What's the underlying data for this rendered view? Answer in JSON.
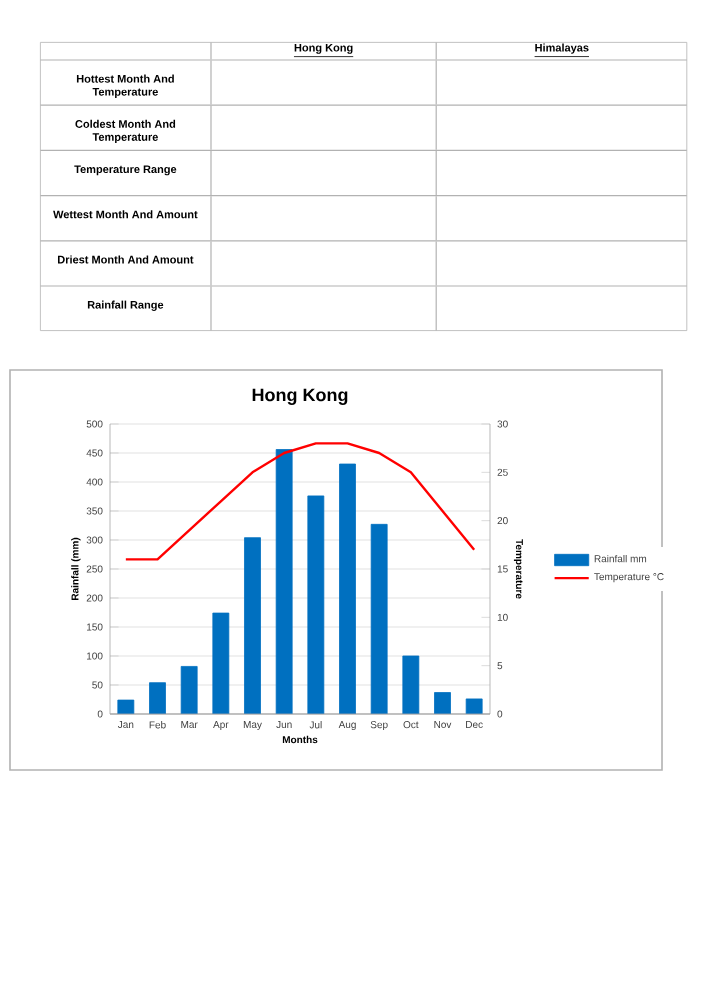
{
  "chart_data": {
    "type": "bar",
    "title": "Hong Kong",
    "xlabel": "Months",
    "ylabel": "Rainfall (mm)",
    "y2label": "Temperature",
    "categories": [
      "Jan",
      "Feb",
      "Mar",
      "Apr",
      "May",
      "Jun",
      "Jul",
      "Aug",
      "Sep",
      "Oct",
      "Nov",
      "Dec"
    ],
    "series": [
      {
        "name": "Rainfall mm",
        "color": "#0070c0",
        "values": [
          24,
          54,
          82,
          174,
          304,
          456,
          376,
          431,
          327,
          100,
          37,
          26
        ]
      },
      {
        "name": "Temperature °C",
        "type": "line",
        "axis": "y2",
        "color": "#ff0000",
        "values": [
          16,
          16,
          19,
          22,
          25,
          27,
          28,
          28,
          27,
          25,
          21,
          17
        ]
      }
    ],
    "ylim": [
      0,
      500
    ],
    "yticks": [
      0,
      50,
      100,
      150,
      200,
      250,
      300,
      350,
      400,
      450,
      500
    ],
    "y2lim": [
      0,
      30
    ],
    "y2ticks": [
      0,
      5,
      10,
      15,
      20,
      25,
      30
    ],
    "grid": "y",
    "legend": "right",
    "marker": "none",
    "line_style": "solid",
    "annotations": [
      "Hong Kong",
      "Himalayas",
      "Hottest Month And Temperature",
      "Coldest Month And Temperature",
      "Temperature Range",
      "Wettest Month And Amount",
      "Driest Month And Amount",
      "Rainfall Range"
    ]
  }
}
